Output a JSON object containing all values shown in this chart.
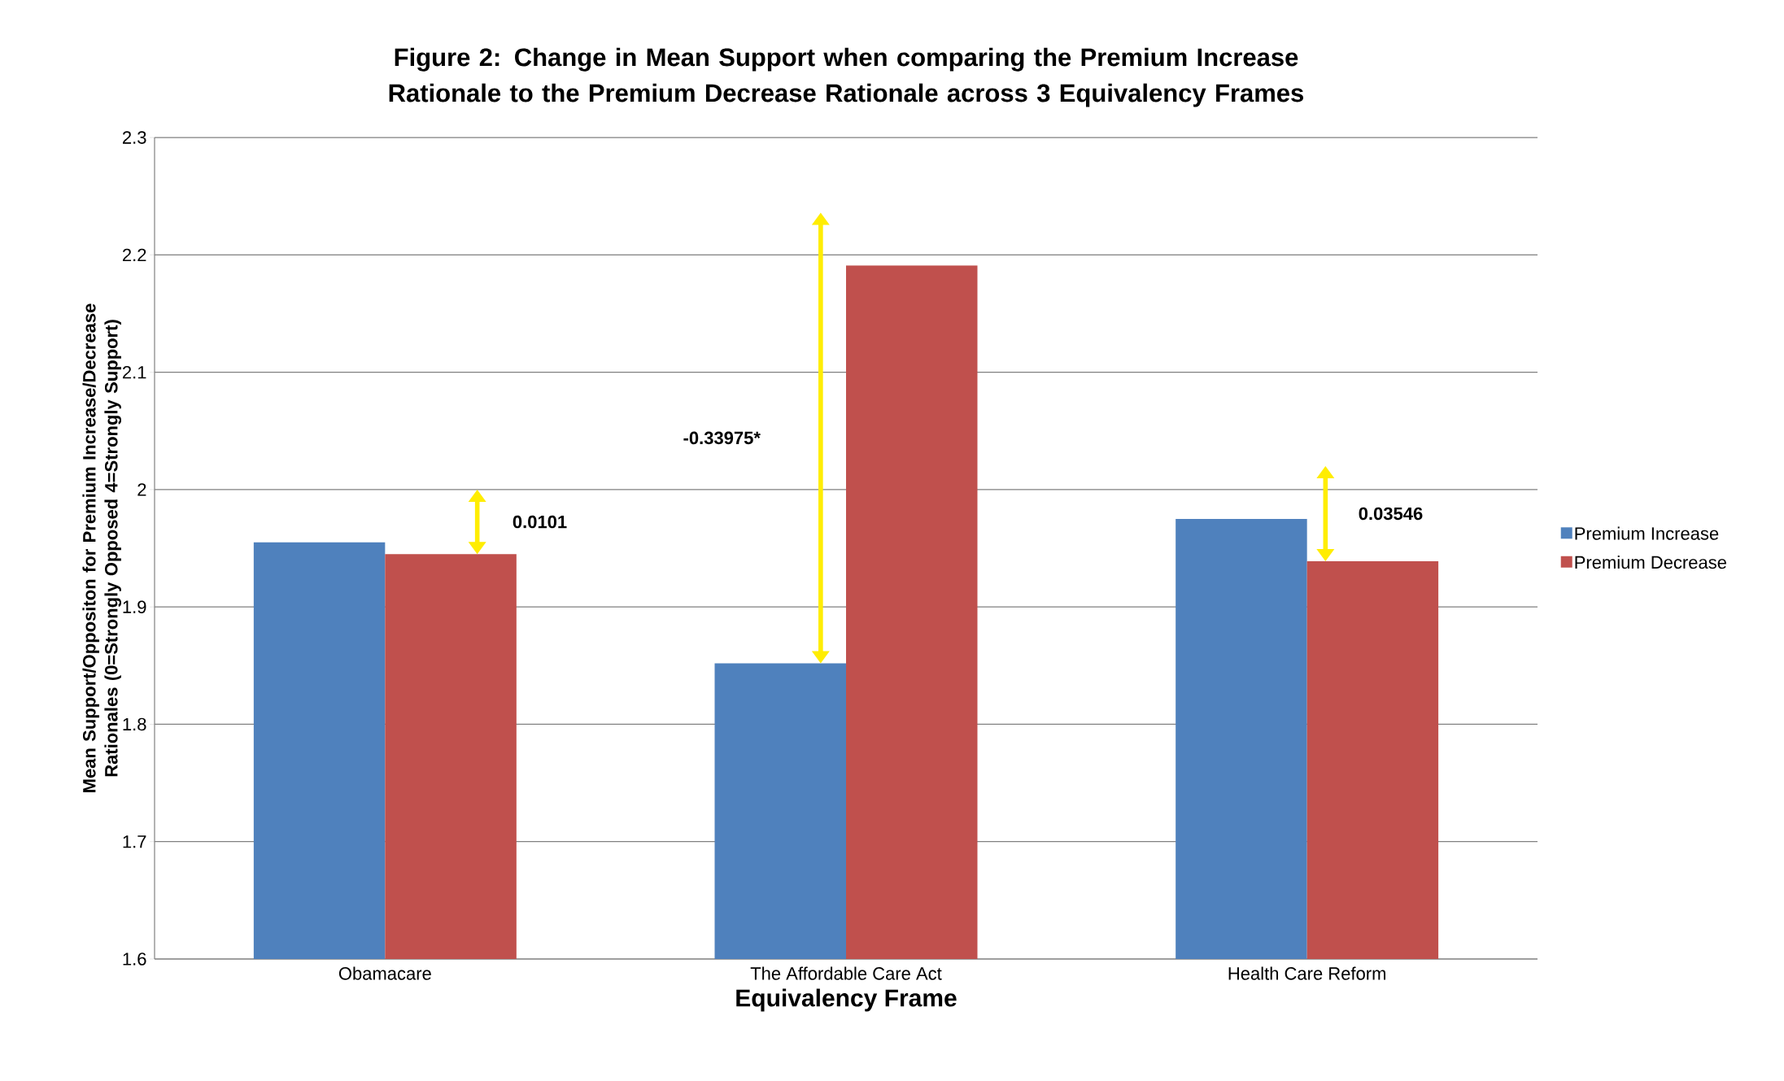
{
  "chart_data": {
    "type": "bar",
    "title": "Figure 2: Change in Mean Support when comparing the Premium Increase Rationale to the Premium Decrease Rationale across 3 Equivalency Frames",
    "xlabel": "Equivalency Frame",
    "ylabel": "Mean Support/Oppositon for Premium Increase/Decrease Rationales (0=Strongly Opposed 4=Strongly Support)",
    "categories": [
      "Obamacare",
      "The Affordable Care Act",
      "Health Care Reform"
    ],
    "series": [
      {
        "name": "Premium Increase",
        "color": "#4f81bd",
        "values": [
          1.955,
          1.852,
          1.975
        ]
      },
      {
        "name": "Premium Decrease",
        "color": "#c0504d",
        "values": [
          1.945,
          2.191,
          1.939
        ]
      }
    ],
    "ylim": [
      1.6,
      2.3
    ],
    "yticks": [
      1.6,
      1.7,
      1.8,
      1.9,
      2,
      2.1,
      2.2,
      2.3
    ],
    "grid": "y",
    "legend": "right",
    "annotations": [
      "0.0101",
      "-0.33975*",
      "0.03546"
    ]
  }
}
